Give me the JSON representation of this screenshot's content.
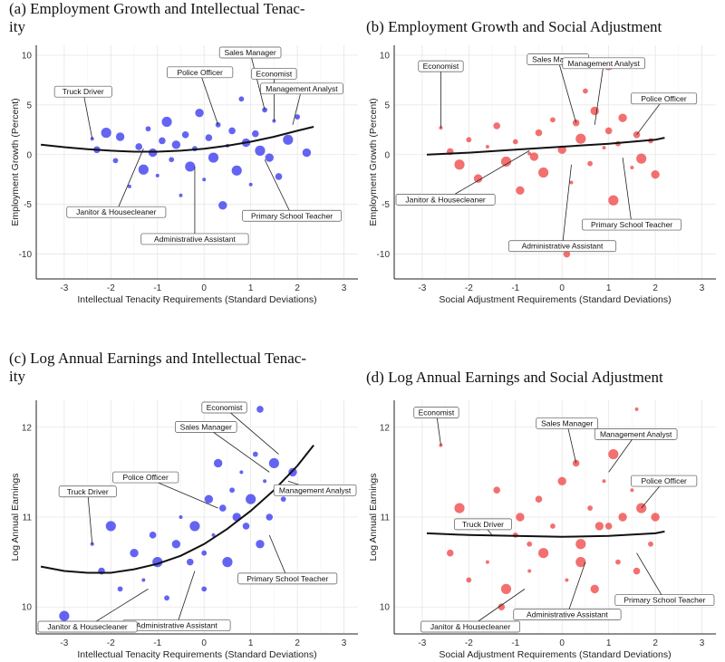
{
  "panels": [
    {
      "title": "(a) Employment Growth and Intellectual Tenacity",
      "title_display": "(a) Employment Growth and Intellectual Tenac-\nity"
    },
    {
      "title": "(b) Employment Growth and Social Adjustment",
      "title_display": "(b) Employment Growth and Social Adjustment"
    },
    {
      "title": "(c) Log Annual Earnings and Intellectual Tenacity",
      "title_display": "(c) Log Annual Earnings and Intellectual Tenac-\nity"
    },
    {
      "title": "(d) Log Annual Earnings and Social Adjustment",
      "title_display": "(d) Log Annual Earnings and Social Adjustment"
    }
  ],
  "chart_data": [
    {
      "type": "scatter",
      "title": "(a) Employment Growth and Intellectual Tenacity",
      "xlabel": "Intellectual Tenacity Requirements (Standard Deviations)",
      "ylabel": "Employment Growth (Percent)",
      "xlim": [
        -3.6,
        3.3
      ],
      "ylim": [
        -12.5,
        11
      ],
      "xticks": [
        -3,
        -2,
        -1,
        0,
        1,
        2,
        3
      ],
      "yticks": [
        -10,
        -5,
        0,
        5,
        10
      ],
      "point_color": "#2222ee",
      "fit_curve": {
        "x": [
          -3.5,
          -3,
          -2.5,
          -2,
          -1.5,
          -1,
          -0.5,
          0,
          0.5,
          1,
          1.5,
          2,
          2.35
        ],
        "y": [
          1.0,
          0.75,
          0.55,
          0.4,
          0.3,
          0.3,
          0.4,
          0.6,
          0.9,
          1.3,
          1.8,
          2.4,
          2.8
        ]
      },
      "points": [
        {
          "x": -2.4,
          "y": 1.6
        },
        {
          "x": -2.3,
          "y": 0.5
        },
        {
          "x": -2.1,
          "y": 2.2
        },
        {
          "x": -1.9,
          "y": -0.6
        },
        {
          "x": -1.8,
          "y": 1.8
        },
        {
          "x": -1.6,
          "y": -3.2
        },
        {
          "x": -1.4,
          "y": 0.8
        },
        {
          "x": -1.3,
          "y": -1.5
        },
        {
          "x": -1.2,
          "y": 2.6
        },
        {
          "x": -1.1,
          "y": 0.2
        },
        {
          "x": -1.0,
          "y": -2.1
        },
        {
          "x": -0.9,
          "y": 1.4
        },
        {
          "x": -0.8,
          "y": 3.3
        },
        {
          "x": -0.7,
          "y": -0.5
        },
        {
          "x": -0.6,
          "y": 1.0
        },
        {
          "x": -0.5,
          "y": -4.1
        },
        {
          "x": -0.4,
          "y": 2.0
        },
        {
          "x": -0.3,
          "y": -1.2
        },
        {
          "x": -0.2,
          "y": 0.6
        },
        {
          "x": -0.1,
          "y": 4.2
        },
        {
          "x": 0.0,
          "y": -2.5
        },
        {
          "x": 0.1,
          "y": 1.7
        },
        {
          "x": 0.2,
          "y": -0.3
        },
        {
          "x": 0.3,
          "y": 3.0
        },
        {
          "x": 0.4,
          "y": -5.1
        },
        {
          "x": 0.5,
          "y": 0.9
        },
        {
          "x": 0.6,
          "y": 2.4
        },
        {
          "x": 0.7,
          "y": -1.6
        },
        {
          "x": 0.8,
          "y": 5.6
        },
        {
          "x": 0.9,
          "y": 1.2
        },
        {
          "x": 1.0,
          "y": -3.0
        },
        {
          "x": 1.1,
          "y": 2.1
        },
        {
          "x": 1.2,
          "y": 0.4
        },
        {
          "x": 1.3,
          "y": 4.5
        },
        {
          "x": 1.4,
          "y": -0.3
        },
        {
          "x": 1.5,
          "y": 3.4
        },
        {
          "x": 1.6,
          "y": -2.2
        },
        {
          "x": 1.8,
          "y": 1.5
        },
        {
          "x": 2.0,
          "y": 3.8
        },
        {
          "x": 2.2,
          "y": 0.2
        }
      ],
      "labels": [
        {
          "text": "Truck Driver",
          "x": -2.4,
          "y": 1.6
        },
        {
          "text": "Police Officer",
          "x": 0.3,
          "y": 3.0
        },
        {
          "text": "Sales Manager",
          "x": 1.3,
          "y": 4.5
        },
        {
          "text": "Economist",
          "x": 1.5,
          "y": 3.4
        },
        {
          "text": "Management Analyst",
          "x": 1.9,
          "y": 3.0
        },
        {
          "text": "Janitor & Housecleaner",
          "x": -1.3,
          "y": 0.6
        },
        {
          "text": "Primary School Teacher",
          "x": 1.3,
          "y": -0.5
        },
        {
          "text": "Administrative Assistant",
          "x": -0.2,
          "y": -1.2
        }
      ]
    },
    {
      "type": "scatter",
      "title": "(b) Employment Growth and Social Adjustment",
      "xlabel": "Social Adjustment Requirements (Standard Deviations)",
      "ylabel": "Employment Growth (Percent)",
      "xlim": [
        -3.6,
        3.3
      ],
      "ylim": [
        -12.5,
        11
      ],
      "xticks": [
        -3,
        -2,
        -1,
        0,
        1,
        2,
        3
      ],
      "yticks": [
        -10,
        -5,
        0,
        5,
        10
      ],
      "point_color": "#ee3333",
      "fit_curve": {
        "x": [
          -2.9,
          -2,
          -1,
          0,
          1,
          2,
          2.2
        ],
        "y": [
          0.0,
          0.2,
          0.5,
          0.8,
          1.1,
          1.5,
          1.7
        ]
      },
      "points": [
        {
          "x": -2.6,
          "y": 2.7
        },
        {
          "x": -2.4,
          "y": 0.3
        },
        {
          "x": -2.2,
          "y": -1.0
        },
        {
          "x": -2.0,
          "y": 1.5
        },
        {
          "x": -1.8,
          "y": -2.4
        },
        {
          "x": -1.6,
          "y": 0.8
        },
        {
          "x": -1.4,
          "y": 2.9
        },
        {
          "x": -1.2,
          "y": -0.7
        },
        {
          "x": -1.0,
          "y": 1.3
        },
        {
          "x": -0.9,
          "y": -3.6
        },
        {
          "x": -0.7,
          "y": 0.1
        },
        {
          "x": -0.5,
          "y": 2.2
        },
        {
          "x": -0.4,
          "y": -1.8
        },
        {
          "x": -0.2,
          "y": 3.5
        },
        {
          "x": 0.0,
          "y": 0.5
        },
        {
          "x": 0.2,
          "y": -2.8
        },
        {
          "x": 0.3,
          "y": 3.2
        },
        {
          "x": 0.4,
          "y": 1.6
        },
        {
          "x": 0.6,
          "y": -0.9
        },
        {
          "x": 0.7,
          "y": 4.4
        },
        {
          "x": 0.9,
          "y": 0.7
        },
        {
          "x": 1.0,
          "y": 2.4
        },
        {
          "x": 1.1,
          "y": -4.6
        },
        {
          "x": 1.2,
          "y": 1.1
        },
        {
          "x": 1.3,
          "y": 3.7
        },
        {
          "x": 1.5,
          "y": -1.3
        },
        {
          "x": 1.6,
          "y": 2.0
        },
        {
          "x": 1.7,
          "y": -0.4
        },
        {
          "x": 1.9,
          "y": 1.4
        },
        {
          "x": 2.0,
          "y": -2.0
        },
        {
          "x": -1.5,
          "y": -4.5
        },
        {
          "x": 0.1,
          "y": -10.0
        },
        {
          "x": 1.0,
          "y": 9.0
        },
        {
          "x": 0.5,
          "y": 6.4
        },
        {
          "x": -0.6,
          "y": -0.2
        }
      ],
      "labels": [
        {
          "text": "Economist",
          "x": -2.6,
          "y": 2.7
        },
        {
          "text": "Sales Manager",
          "x": 0.3,
          "y": 3.2
        },
        {
          "text": "Management Analyst",
          "x": 0.7,
          "y": 3.0
        },
        {
          "text": "Police Officer",
          "x": 1.6,
          "y": 2.0
        },
        {
          "text": "Janitor & Housecleaner",
          "x": -0.7,
          "y": 0.4
        },
        {
          "text": "Primary School Teacher",
          "x": 1.3,
          "y": -0.3
        },
        {
          "text": "Administrative Assistant",
          "x": 0.2,
          "y": -1.0
        }
      ]
    },
    {
      "type": "scatter",
      "title": "(c) Log Annual Earnings and Intellectual Tenacity",
      "xlabel": "Intellectual Tenacity Requirements (Standard Deviations)",
      "ylabel": "Log Annual Earnings",
      "xlim": [
        -3.6,
        3.3
      ],
      "ylim": [
        9.7,
        12.3
      ],
      "xticks": [
        -3,
        -2,
        -1,
        0,
        1,
        2,
        3
      ],
      "yticks": [
        10,
        11,
        12
      ],
      "point_color": "#2222ee",
      "fit_curve": {
        "x": [
          -3.5,
          -3,
          -2.5,
          -2,
          -1.5,
          -1,
          -0.5,
          0,
          0.5,
          1,
          1.5,
          2,
          2.35
        ],
        "y": [
          10.45,
          10.4,
          10.38,
          10.38,
          10.42,
          10.48,
          10.57,
          10.7,
          10.87,
          11.07,
          11.3,
          11.57,
          11.8
        ]
      },
      "points": [
        {
          "x": -2.4,
          "y": 10.7
        },
        {
          "x": -2.2,
          "y": 10.4
        },
        {
          "x": -2.0,
          "y": 10.9
        },
        {
          "x": -1.8,
          "y": 10.2
        },
        {
          "x": -1.5,
          "y": 10.6
        },
        {
          "x": -1.3,
          "y": 10.3
        },
        {
          "x": -1.1,
          "y": 10.8
        },
        {
          "x": -1.0,
          "y": 10.5
        },
        {
          "x": -0.8,
          "y": 10.1
        },
        {
          "x": -0.6,
          "y": 10.7
        },
        {
          "x": -0.5,
          "y": 11.0
        },
        {
          "x": -0.3,
          "y": 10.5
        },
        {
          "x": -0.2,
          "y": 10.9
        },
        {
          "x": 0.0,
          "y": 10.6
        },
        {
          "x": 0.1,
          "y": 11.2
        },
        {
          "x": 0.2,
          "y": 10.8
        },
        {
          "x": 0.4,
          "y": 11.1
        },
        {
          "x": 0.5,
          "y": 10.5
        },
        {
          "x": 0.6,
          "y": 11.3
        },
        {
          "x": 0.7,
          "y": 11.0
        },
        {
          "x": 0.8,
          "y": 11.5
        },
        {
          "x": 0.9,
          "y": 10.9
        },
        {
          "x": 1.0,
          "y": 11.2
        },
        {
          "x": 1.1,
          "y": 11.7
        },
        {
          "x": 1.2,
          "y": 10.7
        },
        {
          "x": 1.3,
          "y": 11.4
        },
        {
          "x": 1.4,
          "y": 11.0
        },
        {
          "x": 1.5,
          "y": 11.6
        },
        {
          "x": 1.7,
          "y": 11.2
        },
        {
          "x": 1.9,
          "y": 11.5
        },
        {
          "x": 2.2,
          "y": 11.3
        },
        {
          "x": 1.2,
          "y": 12.2
        },
        {
          "x": -3.0,
          "y": 9.9
        },
        {
          "x": 0.0,
          "y": 10.2
        },
        {
          "x": 0.3,
          "y": 11.6
        }
      ],
      "labels": [
        {
          "text": "Economist",
          "x": 1.6,
          "y": 11.7
        },
        {
          "text": "Sales Manager",
          "x": 1.4,
          "y": 11.5
        },
        {
          "text": "Police Officer",
          "x": 0.3,
          "y": 11.1
        },
        {
          "text": "Management Analyst",
          "x": 1.8,
          "y": 11.4
        },
        {
          "text": "Truck Driver",
          "x": -2.4,
          "y": 10.7
        },
        {
          "text": "Primary School Teacher",
          "x": 1.4,
          "y": 10.8
        },
        {
          "text": "Administrative Assistant",
          "x": -0.2,
          "y": 10.4
        },
        {
          "text": "Janitor & Housecleaner",
          "x": -1.2,
          "y": 10.2
        }
      ]
    },
    {
      "type": "scatter",
      "title": "(d) Log Annual Earnings and Social Adjustment",
      "xlabel": "Social Adjustment Requirements (Standard Deviations)",
      "ylabel": "Log Annual Earnings",
      "xlim": [
        -3.6,
        3.3
      ],
      "ylim": [
        9.7,
        12.3
      ],
      "xticks": [
        -3,
        -2,
        -1,
        0,
        1,
        2,
        3
      ],
      "yticks": [
        10,
        11,
        12
      ],
      "point_color": "#ee3333",
      "fit_curve": {
        "x": [
          -2.9,
          -2,
          -1,
          0,
          1,
          2,
          2.2
        ],
        "y": [
          10.82,
          10.8,
          10.79,
          10.78,
          10.79,
          10.82,
          10.84
        ]
      },
      "points": [
        {
          "x": -2.6,
          "y": 11.8
        },
        {
          "x": -2.4,
          "y": 10.6
        },
        {
          "x": -2.2,
          "y": 11.1
        },
        {
          "x": -2.0,
          "y": 10.3
        },
        {
          "x": -1.8,
          "y": 10.9
        },
        {
          "x": -1.6,
          "y": 10.5
        },
        {
          "x": -1.4,
          "y": 11.3
        },
        {
          "x": -1.2,
          "y": 10.2
        },
        {
          "x": -1.0,
          "y": 10.8
        },
        {
          "x": -0.9,
          "y": 11.0
        },
        {
          "x": -0.7,
          "y": 10.4
        },
        {
          "x": -0.5,
          "y": 11.2
        },
        {
          "x": -0.4,
          "y": 10.6
        },
        {
          "x": -0.2,
          "y": 10.9
        },
        {
          "x": 0.0,
          "y": 11.4
        },
        {
          "x": 0.1,
          "y": 10.3
        },
        {
          "x": 0.3,
          "y": 11.6
        },
        {
          "x": 0.4,
          "y": 10.7
        },
        {
          "x": 0.6,
          "y": 11.1
        },
        {
          "x": 0.7,
          "y": 10.2
        },
        {
          "x": 0.9,
          "y": 11.4
        },
        {
          "x": 1.0,
          "y": 10.9
        },
        {
          "x": 1.1,
          "y": 11.7
        },
        {
          "x": 1.2,
          "y": 10.5
        },
        {
          "x": 1.3,
          "y": 11.0
        },
        {
          "x": 1.5,
          "y": 11.3
        },
        {
          "x": 1.6,
          "y": 10.4
        },
        {
          "x": 1.7,
          "y": 11.1
        },
        {
          "x": 1.9,
          "y": 10.7
        },
        {
          "x": 2.0,
          "y": 11.0
        },
        {
          "x": 1.6,
          "y": 12.2
        },
        {
          "x": -1.3,
          "y": 10.0
        },
        {
          "x": 0.4,
          "y": 10.5
        },
        {
          "x": -0.7,
          "y": 10.7
        },
        {
          "x": 0.8,
          "y": 10.9
        }
      ],
      "labels": [
        {
          "text": "Economist",
          "x": -2.6,
          "y": 11.8
        },
        {
          "text": "Sales Manager",
          "x": 0.3,
          "y": 11.6
        },
        {
          "text": "Management Analyst",
          "x": 1.0,
          "y": 11.5
        },
        {
          "text": "Police Officer",
          "x": 1.7,
          "y": 11.1
        },
        {
          "text": "Truck Driver",
          "x": -1.5,
          "y": 10.8
        },
        {
          "text": "Primary School Teacher",
          "x": 1.6,
          "y": 10.6
        },
        {
          "text": "Administrative Assistant",
          "x": 0.5,
          "y": 10.5
        },
        {
          "text": "Janitor & Housecleaner",
          "x": -0.8,
          "y": 10.2
        }
      ]
    }
  ]
}
